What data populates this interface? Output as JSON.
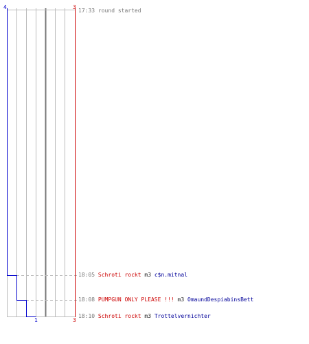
{
  "colors": {
    "team_red": "#cc0000",
    "team_blue": "#0000cc",
    "grid": "#bbbbbb",
    "dash": "#bbbbbb",
    "text_grey": "#777777"
  },
  "scores": {
    "blue_start": "4",
    "red_start": "3",
    "blue_end": "1",
    "red_end": "3"
  },
  "events": [
    {
      "time": "17:33",
      "text": "round started"
    },
    {
      "time": "18:05",
      "killer": "Schroti rockt",
      "action": "m3",
      "victim": "c$n.mitnal"
    },
    {
      "time": "18:08",
      "killer": "PUMPGUN ONLY PLEASE !!!",
      "action": "m3",
      "victim": "OmaundDespiabinsBett"
    },
    {
      "time": "18:10",
      "killer": "Schroti rockt",
      "action": "m3",
      "victim": "Trottelvernichter"
    }
  ]
}
